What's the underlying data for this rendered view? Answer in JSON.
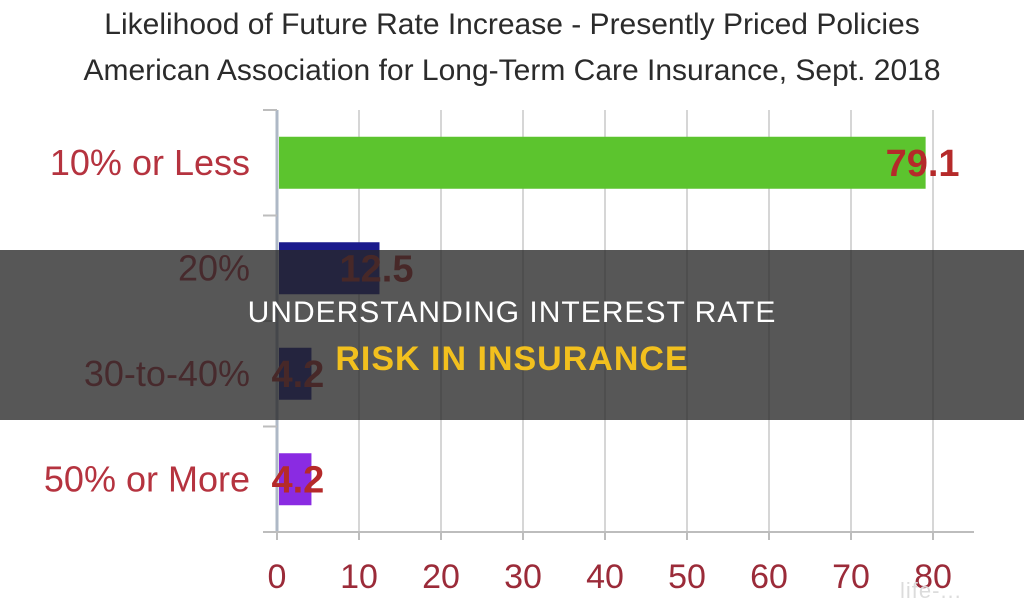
{
  "chart_data": {
    "type": "bar",
    "orientation": "horizontal",
    "title": "Likelihood of Future Rate Increase - Presently Priced Policies",
    "subtitle": "American Association for Long-Term Care Insurance, Sept. 2018",
    "categories": [
      "10% or Less",
      "20%",
      "30-to-40%",
      "50% or More"
    ],
    "values": [
      79.1,
      12.5,
      4.2,
      4.2
    ],
    "value_labels": [
      "79.1",
      "12.5",
      "4.2",
      "4.2"
    ],
    "bar_colors": [
      "#5cc42e",
      "#1a1a8c",
      "#1a1a8c",
      "#8a2be2"
    ],
    "xlim": [
      0,
      85
    ],
    "x_ticks": [
      0,
      10,
      20,
      30,
      40,
      50,
      60,
      70,
      80
    ],
    "grid": "vertical",
    "label_color": "#b5333f",
    "tick_color": "#9b2b39",
    "value_label_color": "#b52a2a"
  },
  "overlay": {
    "line1": "Understanding Interest Rate",
    "line2": "Risk In Insurance"
  },
  "watermark": {
    "text": "life-..."
  }
}
